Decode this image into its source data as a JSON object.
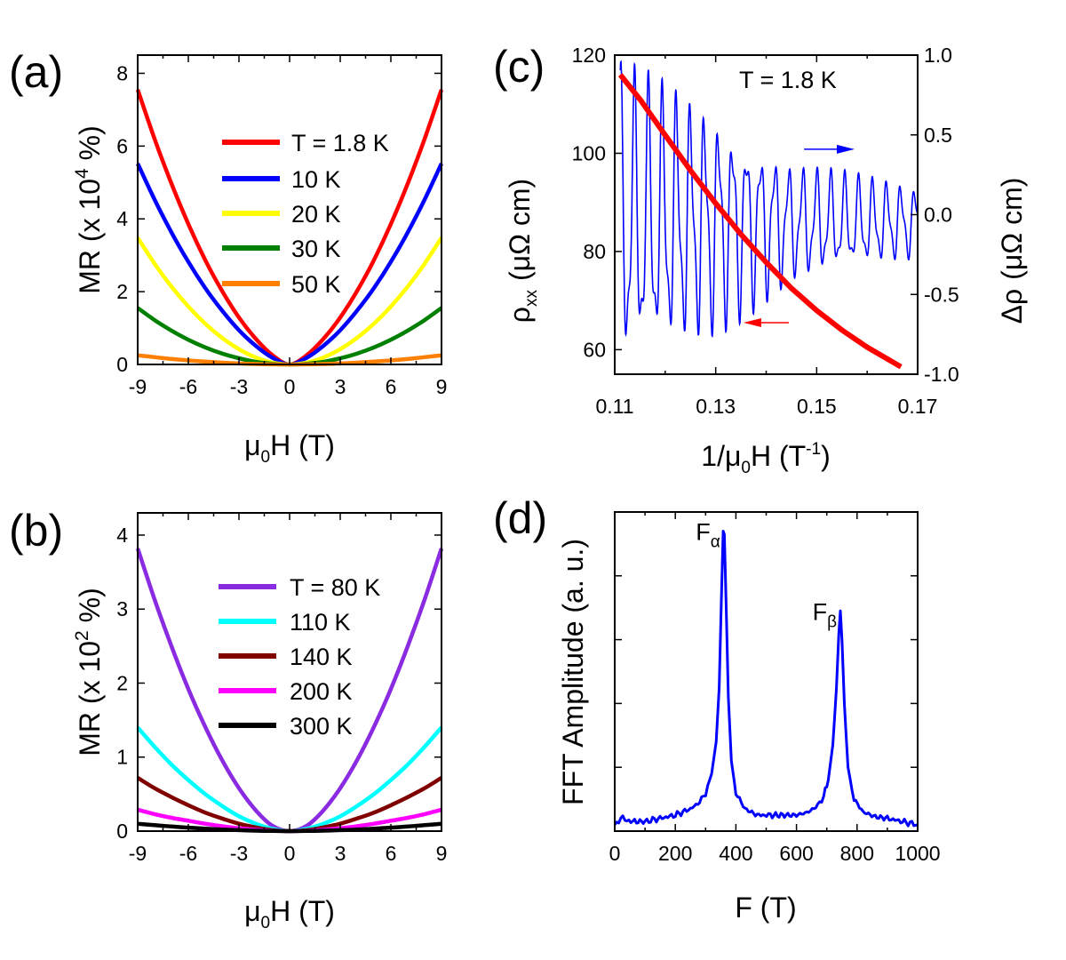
{
  "chart_data": [
    {
      "id": "a",
      "panel_label": "(a)",
      "type": "line",
      "xlabel": {
        "mu": "μ",
        "sub": "0",
        "rest": "H (T)"
      },
      "ylabel": {
        "pre": "MR (x 10",
        "sup": "4",
        "post": " %)"
      },
      "xlim": [
        -9,
        9
      ],
      "ylim": [
        0,
        8.5
      ],
      "xticks": [
        "-9",
        "-6",
        "-3",
        "0",
        "3",
        "6",
        "9"
      ],
      "yticks": [
        "0",
        "2",
        "4",
        "6",
        "8"
      ],
      "x_points": [
        -9,
        -8,
        -7,
        -6,
        -5,
        -4,
        -3,
        -2,
        -1,
        0,
        1,
        2,
        3,
        4,
        5,
        6,
        7,
        8,
        9
      ],
      "series": [
        {
          "name": "T = 1.8 K",
          "color": "#ff0000",
          "values": [
            7.55,
            6.2,
            4.97,
            3.86,
            2.87,
            2.02,
            1.29,
            0.7,
            0.25,
            0,
            0.25,
            0.7,
            1.29,
            2.02,
            2.87,
            3.86,
            4.97,
            6.2,
            7.55
          ]
        },
        {
          "name": "10 K",
          "color": "#0000ff",
          "values": [
            5.52,
            4.53,
            3.63,
            2.82,
            2.1,
            1.48,
            0.94,
            0.51,
            0.18,
            0,
            0.18,
            0.51,
            0.94,
            1.48,
            2.1,
            2.82,
            3.63,
            4.53,
            5.52
          ]
        },
        {
          "name": "20 K",
          "color": "#ffff00",
          "values": [
            3.48,
            2.77,
            2.14,
            1.59,
            1.12,
            0.73,
            0.42,
            0.19,
            0.05,
            0,
            0.05,
            0.19,
            0.42,
            0.73,
            1.12,
            1.59,
            2.14,
            2.77,
            3.48
          ]
        },
        {
          "name": "30 K",
          "color": "#008000",
          "values": [
            1.55,
            1.22,
            0.93,
            0.68,
            0.47,
            0.3,
            0.17,
            0.07,
            0.02,
            0,
            0.02,
            0.07,
            0.17,
            0.3,
            0.47,
            0.68,
            0.93,
            1.22,
            1.55
          ]
        },
        {
          "name": "50 K",
          "color": "#ff8000",
          "values": [
            0.25,
            0.2,
            0.15,
            0.11,
            0.077,
            0.049,
            0.028,
            0.012,
            0.003,
            0,
            0.003,
            0.012,
            0.028,
            0.049,
            0.077,
            0.11,
            0.15,
            0.2,
            0.25
          ]
        }
      ]
    },
    {
      "id": "b",
      "panel_label": "(b)",
      "type": "line",
      "xlabel": {
        "mu": "μ",
        "sub": "0",
        "rest": "H (T)"
      },
      "ylabel": {
        "pre": "MR (x 10",
        "sup": "2",
        "post": " %)"
      },
      "xlim": [
        -9,
        9
      ],
      "ylim": [
        0,
        4.3
      ],
      "xticks": [
        "-9",
        "-6",
        "-3",
        "0",
        "3",
        "6",
        "9"
      ],
      "yticks": [
        "0",
        "1",
        "2",
        "3",
        "4"
      ],
      "x_points": [
        -9,
        -8,
        -7,
        -6,
        -5,
        -4,
        -3,
        -2,
        -1,
        0,
        1,
        2,
        3,
        4,
        5,
        6,
        7,
        8,
        9
      ],
      "series": [
        {
          "name": "T = 80 K",
          "color": "#8a2be2",
          "values": [
            3.82,
            3.13,
            2.5,
            1.92,
            1.41,
            0.96,
            0.58,
            0.28,
            0.07,
            0,
            0.07,
            0.28,
            0.58,
            0.96,
            1.41,
            1.92,
            2.5,
            3.13,
            3.82
          ]
        },
        {
          "name": "110 K",
          "color": "#00ffff",
          "values": [
            1.4,
            1.14,
            0.9,
            0.69,
            0.5,
            0.34,
            0.2,
            0.1,
            0.03,
            0,
            0.03,
            0.1,
            0.2,
            0.34,
            0.5,
            0.69,
            0.9,
            1.14,
            1.4
          ]
        },
        {
          "name": "140 K",
          "color": "#800000",
          "values": [
            0.72,
            0.58,
            0.46,
            0.35,
            0.25,
            0.17,
            0.1,
            0.05,
            0.012,
            0,
            0.012,
            0.05,
            0.1,
            0.17,
            0.25,
            0.35,
            0.46,
            0.58,
            0.72
          ]
        },
        {
          "name": "200 K",
          "color": "#ff00ff",
          "values": [
            0.29,
            0.23,
            0.18,
            0.14,
            0.1,
            0.066,
            0.039,
            0.018,
            0.005,
            0,
            0.005,
            0.018,
            0.039,
            0.066,
            0.1,
            0.14,
            0.18,
            0.23,
            0.29
          ]
        },
        {
          "name": "300 K",
          "color": "#000000",
          "values": [
            0.1,
            0.08,
            0.063,
            0.047,
            0.034,
            0.022,
            0.013,
            0.006,
            0.002,
            0,
            0.002,
            0.006,
            0.013,
            0.022,
            0.034,
            0.047,
            0.063,
            0.08,
            0.1
          ]
        }
      ]
    },
    {
      "id": "c",
      "panel_label": "(c)",
      "type": "line",
      "annotation": "T = 1.8 K",
      "xlabel": {
        "pre": "1/μ",
        "sub": "0",
        "mid": "H (T",
        "sup": "-1",
        "post": ")"
      },
      "ylabel_left": {
        "rho": "ρ",
        "sub": "xx",
        "post": "(μΩ cm)"
      },
      "ylabel_right": {
        "pre": "Δρ",
        "post": "(μΩ cm)"
      },
      "xlim": [
        0.11,
        0.17
      ],
      "ylim_left": [
        55,
        120
      ],
      "ylim_right": [
        -1.0,
        1.0
      ],
      "xticks": [
        "0.11",
        "0.13",
        "0.15",
        "0.17"
      ],
      "yticks_left": [
        "60",
        "80",
        "100",
        "120"
      ],
      "yticks_right": [
        "-1.0",
        "-0.5",
        "0.0",
        "0.5",
        "1.0"
      ],
      "rho_xx": {
        "color": "#ff0000",
        "x": [
          0.1111,
          0.115,
          0.12,
          0.125,
          0.13,
          0.135,
          0.14,
          0.145,
          0.15,
          0.155,
          0.16,
          0.1667
        ],
        "y": [
          116.0,
          111.0,
          103.7,
          96.5,
          89.8,
          83.5,
          77.8,
          72.5,
          68.0,
          64.0,
          60.5,
          56.5
        ]
      },
      "delta_rho": {
        "color": "#0000ff",
        "x_start": 0.1111,
        "x_end": 0.17,
        "base_frequency_T": 360,
        "beat_frequency_T": 745,
        "envelope": [
          {
            "x": 0.1111,
            "amp": 0.95
          },
          {
            "x": 0.13,
            "amp": 0.68
          },
          {
            "x": 0.145,
            "amp": 0.36
          },
          {
            "x": 0.17,
            "amp": 0.22
          }
        ],
        "offset": -0.05
      },
      "arrows": [
        {
          "axis": "right",
          "direction": "right",
          "x_from": 0.1475,
          "x_to": 0.1575,
          "y": 0.41,
          "color": "#0000ff"
        },
        {
          "axis": "left",
          "direction": "left",
          "x_from": 0.1445,
          "x_to": 0.1355,
          "y": 65.5,
          "color": "#ff0000"
        }
      ]
    },
    {
      "id": "d",
      "panel_label": "(d)",
      "type": "line",
      "xlabel": {
        "text": "F (T)"
      },
      "ylabel": {
        "text": "FFT Amplitude (a. u.)"
      },
      "xlim": [
        0,
        1000
      ],
      "ylim": [
        0,
        1.0
      ],
      "xticks": [
        "0",
        "200",
        "400",
        "600",
        "800",
        "1000"
      ],
      "peaks": [
        {
          "label": "F",
          "sub": "α",
          "x": 360,
          "height": 0.94
        },
        {
          "label": "F",
          "sub": "β",
          "x": 745,
          "height": 0.69
        }
      ],
      "series": {
        "color": "#0000ff",
        "x": [
          0,
          20,
          40,
          60,
          100,
          150,
          200,
          250,
          280,
          300,
          320,
          335,
          345,
          352,
          358,
          362,
          368,
          375,
          385,
          400,
          430,
          470,
          520,
          560,
          600,
          640,
          670,
          690,
          705,
          720,
          732,
          740,
          745,
          750,
          758,
          770,
          790,
          820,
          860,
          900,
          950,
          1000
        ],
        "y": [
          0.02,
          0.04,
          0.035,
          0.03,
          0.03,
          0.04,
          0.05,
          0.07,
          0.09,
          0.12,
          0.18,
          0.28,
          0.45,
          0.72,
          0.94,
          0.93,
          0.7,
          0.42,
          0.22,
          0.12,
          0.07,
          0.05,
          0.05,
          0.05,
          0.05,
          0.06,
          0.08,
          0.11,
          0.16,
          0.27,
          0.45,
          0.62,
          0.69,
          0.6,
          0.4,
          0.2,
          0.1,
          0.06,
          0.045,
          0.04,
          0.03,
          0.02
        ]
      }
    }
  ]
}
